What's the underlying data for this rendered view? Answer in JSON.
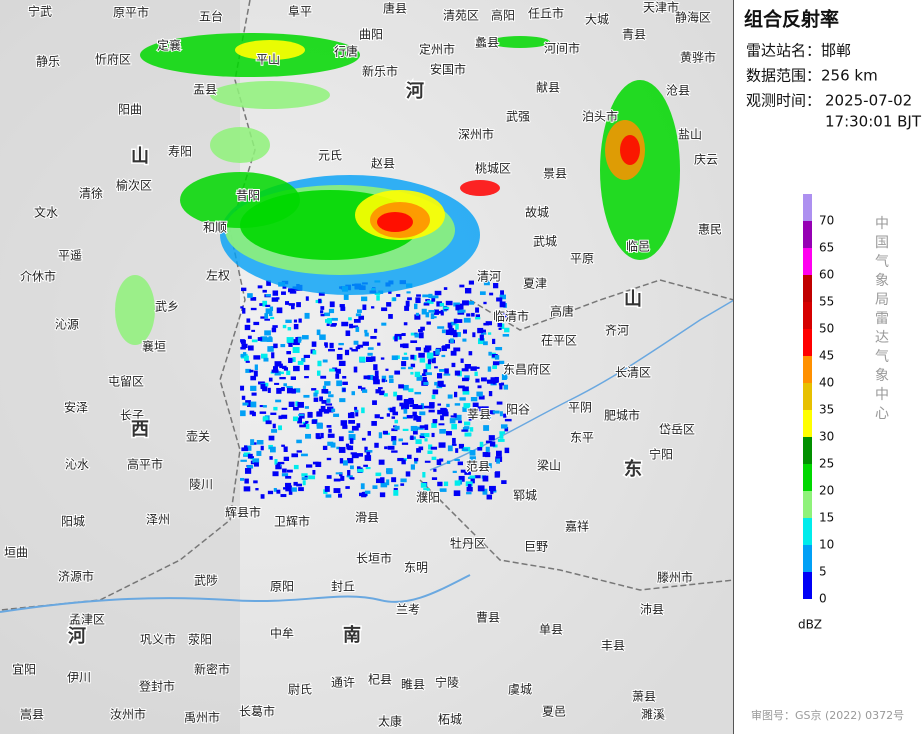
{
  "panel": {
    "title": "组合反射率",
    "station": "雷达站名：邯郸",
    "range": "数据范围：256 km",
    "time_label": "观测时间：",
    "time_date": "2025-07-02",
    "time_clock": "17:30:01 BJT",
    "agency": "中国气象局雷达气象中心",
    "credit": "审图号：GS京 (2022) 0372号"
  },
  "legend": {
    "unit": "dBZ",
    "ticks": [
      0,
      5,
      10,
      15,
      20,
      25,
      30,
      35,
      40,
      45,
      50,
      55,
      60,
      65,
      70
    ],
    "colors": [
      "#0000f6",
      "#01a0f6",
      "#00ecec",
      "#8ff27a",
      "#00d800",
      "#019000",
      "#ffff00",
      "#e7c000",
      "#ff9000",
      "#ff0000",
      "#d60000",
      "#c00000",
      "#ff00f0",
      "#9600b4",
      "#ad90f0"
    ]
  },
  "map": {
    "labels": [
      "原平市",
      "五台",
      "阜平",
      "唐县",
      "清苑区",
      "高阳",
      "任丘市",
      "大城",
      "天津市",
      "静海区",
      "青县",
      "宁武",
      "定襄",
      "曲阳",
      "定州市",
      "安国市",
      "蠡县",
      "河间市",
      "黄骅市",
      "静乐",
      "忻府区",
      "盂县",
      "平山",
      "行唐",
      "新乐市",
      "献县",
      "沧县",
      "阳曲",
      "寿阳",
      "元氏",
      "赵县",
      "深州市",
      "武强",
      "泊头市",
      "盐山",
      "榆次区",
      "清徐",
      "昔阳",
      "桃城区",
      "景县",
      "庆云",
      "文水",
      "和顺",
      "故城",
      "惠民",
      "平遥",
      "左权",
      "清河",
      "武城",
      "平原",
      "临邑",
      "介休市",
      "夏津",
      "武乡",
      "高唐",
      "齐河",
      "沁源",
      "襄垣",
      "屯留区",
      "临清市",
      "茌平区",
      "东昌府区",
      "长清区",
      "安泽",
      "长子",
      "壶关",
      "阳谷",
      "平阴",
      "肥城市",
      "岱岳区",
      "沁水",
      "高平市",
      "陵川",
      "莘县",
      "范县",
      "梁山",
      "东平",
      "宁阳",
      "阳城",
      "泽州",
      "辉县市",
      "卫辉市",
      "滑县",
      "濮阳",
      "郓城",
      "嘉祥",
      "垣曲",
      "济源市",
      "武陟",
      "原阳",
      "封丘",
      "长垣市",
      "东明",
      "牡丹区",
      "巨野",
      "滕州市",
      "孟津区",
      "巩义市",
      "荥阳",
      "中牟",
      "兰考",
      "曹县",
      "单县",
      "丰县",
      "沛县",
      "宜阳",
      "伊川",
      "登封市",
      "新密市",
      "尉氏",
      "通许",
      "杞县",
      "睢县",
      "宁陵",
      "虞城",
      "萧县",
      "嵩县",
      "汝州市",
      "禹州市",
      "长葛市",
      "太康",
      "柘城",
      "夏邑",
      "濉溪"
    ],
    "regions": [
      "山",
      "西",
      "河",
      "东",
      "南",
      "河",
      "山"
    ]
  }
}
